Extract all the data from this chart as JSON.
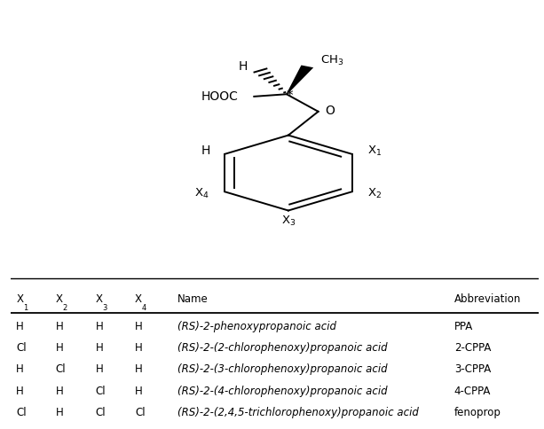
{
  "table_headers_plain": [
    "X",
    "X",
    "X",
    "X",
    "Name",
    "Abbreviation"
  ],
  "table_subs": [
    "1",
    "2",
    "3",
    "4",
    "",
    ""
  ],
  "table_rows": [
    [
      "H",
      "H",
      "H",
      "H",
      "(RS)-2-phenoxypropanoic acid",
      "PPA"
    ],
    [
      "Cl",
      "H",
      "H",
      "H",
      "(RS)-2-(2-chlorophenoxy)propanoic acid",
      "2-CPPA"
    ],
    [
      "H",
      "Cl",
      "H",
      "H",
      "(RS)-2-(3-chlorophenoxy)propanoic acid",
      "3-CPPA"
    ],
    [
      "H",
      "H",
      "Cl",
      "H",
      "(RS)-2-(4-chlorophenoxy)propanoic acid",
      "4-CPPA"
    ],
    [
      "Cl",
      "H",
      "Cl",
      "Cl",
      "(RS)-2-(2,4,5-trichlorophenoxy)propanoic acid",
      "fenoprop"
    ]
  ],
  "background_color": "#ffffff",
  "line_color": "#000000"
}
